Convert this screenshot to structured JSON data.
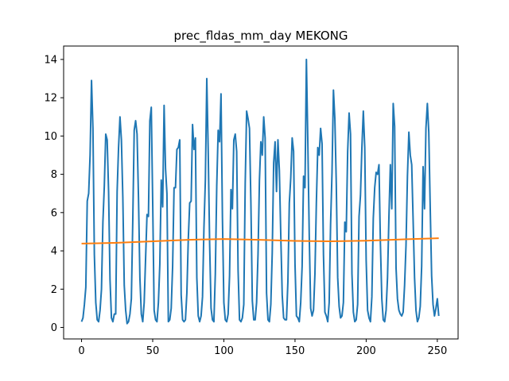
{
  "chart_data": {
    "type": "line",
    "title": "prec_fldas_mm_day MEKONG",
    "xlabel": "",
    "ylabel": "",
    "xlim": [
      -12.6,
      264.6
    ],
    "ylim": [
      -0.6,
      14.7
    ],
    "x_ticks": [
      0,
      50,
      100,
      150,
      200,
      250
    ],
    "y_ticks": [
      0,
      2,
      4,
      6,
      8,
      10,
      12,
      14
    ],
    "grid": false,
    "legend": "none",
    "series": [
      {
        "color": "#1f77b4",
        "points": [
          [
            0,
            0.3
          ],
          [
            1,
            0.5
          ],
          [
            2,
            1.2
          ],
          [
            3,
            2.1
          ],
          [
            4,
            6.6
          ],
          [
            5,
            7.0
          ],
          [
            6,
            9.0
          ],
          [
            7,
            12.9
          ],
          [
            8,
            10.4
          ],
          [
            9,
            3.8
          ],
          [
            10,
            1.3
          ],
          [
            11,
            0.4
          ],
          [
            12,
            0.3
          ],
          [
            13,
            0.9
          ],
          [
            14,
            2.0
          ],
          [
            15,
            5.5
          ],
          [
            16,
            7.4
          ],
          [
            17,
            10.1
          ],
          [
            18,
            9.8
          ],
          [
            19,
            7.1
          ],
          [
            20,
            2.5
          ],
          [
            21,
            0.5
          ],
          [
            22,
            0.3
          ],
          [
            23,
            0.7
          ],
          [
            24,
            0.7
          ],
          [
            25,
            7.1
          ],
          [
            26,
            9.4
          ],
          [
            27,
            11.0
          ],
          [
            28,
            9.8
          ],
          [
            29,
            6.8
          ],
          [
            30,
            2.2
          ],
          [
            31,
            0.9
          ],
          [
            32,
            0.2
          ],
          [
            33,
            0.3
          ],
          [
            34,
            0.7
          ],
          [
            35,
            1.5
          ],
          [
            36,
            5.6
          ],
          [
            37,
            10.3
          ],
          [
            38,
            10.8
          ],
          [
            39,
            10.1
          ],
          [
            40,
            6.8
          ],
          [
            41,
            2.6
          ],
          [
            42,
            0.7
          ],
          [
            43,
            0.3
          ],
          [
            44,
            1.3
          ],
          [
            45,
            3.6
          ],
          [
            46,
            5.9
          ],
          [
            47,
            5.8
          ],
          [
            48,
            10.8
          ],
          [
            49,
            11.5
          ],
          [
            50,
            6.5
          ],
          [
            51,
            0.9
          ],
          [
            52,
            0.4
          ],
          [
            53,
            0.3
          ],
          [
            54,
            1.3
          ],
          [
            55,
            3.3
          ],
          [
            56,
            7.7
          ],
          [
            57,
            6.3
          ],
          [
            58,
            11.6
          ],
          [
            59,
            8.3
          ],
          [
            60,
            7.0
          ],
          [
            61,
            0.3
          ],
          [
            62,
            0.4
          ],
          [
            63,
            1.0
          ],
          [
            64,
            3.2
          ],
          [
            65,
            7.3
          ],
          [
            66,
            7.3
          ],
          [
            67,
            9.3
          ],
          [
            68,
            9.4
          ],
          [
            69,
            9.8
          ],
          [
            70,
            1.7
          ],
          [
            71,
            0.4
          ],
          [
            72,
            0.3
          ],
          [
            73,
            0.4
          ],
          [
            74,
            1.8
          ],
          [
            75,
            4.6
          ],
          [
            76,
            6.5
          ],
          [
            77,
            6.6
          ],
          [
            78,
            10.6
          ],
          [
            79,
            9.3
          ],
          [
            80,
            9.9
          ],
          [
            81,
            2.6
          ],
          [
            82,
            0.6
          ],
          [
            83,
            0.3
          ],
          [
            84,
            0.6
          ],
          [
            85,
            1.6
          ],
          [
            86,
            5.2
          ],
          [
            87,
            7.7
          ],
          [
            88,
            13.0
          ],
          [
            89,
            9.2
          ],
          [
            90,
            4.4
          ],
          [
            91,
            1.0
          ],
          [
            92,
            0.4
          ],
          [
            93,
            0.3
          ],
          [
            94,
            2.8
          ],
          [
            95,
            7.4
          ],
          [
            96,
            10.3
          ],
          [
            97,
            9.7
          ],
          [
            98,
            12.2
          ],
          [
            99,
            5.7
          ],
          [
            100,
            1.3
          ],
          [
            101,
            0.4
          ],
          [
            102,
            0.3
          ],
          [
            103,
            0.7
          ],
          [
            104,
            2.7
          ],
          [
            105,
            7.2
          ],
          [
            106,
            6.2
          ],
          [
            107,
            9.8
          ],
          [
            108,
            10.1
          ],
          [
            109,
            9.2
          ],
          [
            110,
            3.0
          ],
          [
            111,
            0.4
          ],
          [
            112,
            0.3
          ],
          [
            113,
            0.5
          ],
          [
            114,
            1.2
          ],
          [
            115,
            7.5
          ],
          [
            116,
            11.3
          ],
          [
            117,
            10.9
          ],
          [
            118,
            10.4
          ],
          [
            119,
            6.5
          ],
          [
            120,
            1.4
          ],
          [
            121,
            0.4
          ],
          [
            122,
            0.4
          ],
          [
            123,
            1.3
          ],
          [
            124,
            3.8
          ],
          [
            125,
            7.7
          ],
          [
            126,
            9.7
          ],
          [
            127,
            9.0
          ],
          [
            128,
            11.0
          ],
          [
            129,
            9.9
          ],
          [
            130,
            1.8
          ],
          [
            131,
            0.4
          ],
          [
            132,
            0.3
          ],
          [
            133,
            1.2
          ],
          [
            134,
            3.9
          ],
          [
            135,
            8.6
          ],
          [
            136,
            9.7
          ],
          [
            137,
            7.1
          ],
          [
            138,
            9.8
          ],
          [
            139,
            8.2
          ],
          [
            140,
            4.8
          ],
          [
            141,
            1.7
          ],
          [
            142,
            0.5
          ],
          [
            143,
            0.4
          ],
          [
            144,
            0.4
          ],
          [
            145,
            2.4
          ],
          [
            146,
            6.5
          ],
          [
            147,
            7.8
          ],
          [
            148,
            9.9
          ],
          [
            149,
            9.2
          ],
          [
            150,
            3.3
          ],
          [
            151,
            0.6
          ],
          [
            152,
            0.5
          ],
          [
            153,
            0.3
          ],
          [
            154,
            1.3
          ],
          [
            155,
            3.2
          ],
          [
            156,
            7.9
          ],
          [
            157,
            7.3
          ],
          [
            158,
            14.0
          ],
          [
            159,
            9.7
          ],
          [
            160,
            4.8
          ],
          [
            161,
            1.0
          ],
          [
            162,
            0.6
          ],
          [
            163,
            0.9
          ],
          [
            164,
            2.8
          ],
          [
            165,
            6.5
          ],
          [
            166,
            9.4
          ],
          [
            167,
            9.0
          ],
          [
            168,
            10.4
          ],
          [
            169,
            9.6
          ],
          [
            170,
            3.8
          ],
          [
            171,
            0.8
          ],
          [
            172,
            0.6
          ],
          [
            173,
            0.3
          ],
          [
            174,
            1.3
          ],
          [
            175,
            5.4
          ],
          [
            176,
            8.1
          ],
          [
            177,
            12.4
          ],
          [
            178,
            10.9
          ],
          [
            179,
            7.5
          ],
          [
            180,
            2.6
          ],
          [
            181,
            1.1
          ],
          [
            182,
            0.5
          ],
          [
            183,
            0.6
          ],
          [
            184,
            1.3
          ],
          [
            185,
            5.5
          ],
          [
            186,
            5.0
          ],
          [
            187,
            9.2
          ],
          [
            188,
            11.2
          ],
          [
            189,
            10.1
          ],
          [
            190,
            2.8
          ],
          [
            191,
            0.8
          ],
          [
            192,
            0.3
          ],
          [
            193,
            0.4
          ],
          [
            194,
            1.2
          ],
          [
            195,
            5.8
          ],
          [
            196,
            6.9
          ],
          [
            197,
            9.4
          ],
          [
            198,
            11.3
          ],
          [
            199,
            9.4
          ],
          [
            200,
            3.5
          ],
          [
            201,
            0.9
          ],
          [
            202,
            0.5
          ],
          [
            203,
            0.3
          ],
          [
            204,
            1.6
          ],
          [
            205,
            5.7
          ],
          [
            206,
            7.3
          ],
          [
            207,
            8.1
          ],
          [
            208,
            8.0
          ],
          [
            209,
            8.5
          ],
          [
            210,
            4.4
          ],
          [
            211,
            1.5
          ],
          [
            212,
            0.4
          ],
          [
            213,
            0.3
          ],
          [
            214,
            0.9
          ],
          [
            215,
            2.6
          ],
          [
            216,
            5.8
          ],
          [
            217,
            8.5
          ],
          [
            218,
            6.2
          ],
          [
            219,
            11.7
          ],
          [
            220,
            10.5
          ],
          [
            221,
            3.1
          ],
          [
            222,
            1.5
          ],
          [
            223,
            0.9
          ],
          [
            224,
            0.7
          ],
          [
            225,
            0.6
          ],
          [
            226,
            0.8
          ],
          [
            227,
            2.2
          ],
          [
            228,
            4.3
          ],
          [
            229,
            7.9
          ],
          [
            230,
            10.2
          ],
          [
            231,
            9.0
          ],
          [
            232,
            8.5
          ],
          [
            233,
            5.6
          ],
          [
            234,
            2.6
          ],
          [
            235,
            0.9
          ],
          [
            236,
            0.3
          ],
          [
            237,
            0.5
          ],
          [
            238,
            1.1
          ],
          [
            239,
            3.2
          ],
          [
            240,
            8.4
          ],
          [
            241,
            6.2
          ],
          [
            242,
            10.4
          ],
          [
            243,
            11.7
          ],
          [
            244,
            10.2
          ],
          [
            245,
            6.3
          ],
          [
            246,
            2.7
          ],
          [
            247,
            1.2
          ],
          [
            248,
            0.6
          ],
          [
            249,
            1.0
          ],
          [
            250,
            1.5
          ],
          [
            251,
            0.6
          ]
        ]
      },
      {
        "color": "#ff7f0e",
        "points": [
          [
            0,
            4.38
          ],
          [
            25,
            4.42
          ],
          [
            50,
            4.5
          ],
          [
            75,
            4.58
          ],
          [
            100,
            4.62
          ],
          [
            125,
            4.58
          ],
          [
            150,
            4.52
          ],
          [
            175,
            4.5
          ],
          [
            200,
            4.53
          ],
          [
            225,
            4.6
          ],
          [
            251,
            4.66
          ]
        ]
      }
    ]
  }
}
